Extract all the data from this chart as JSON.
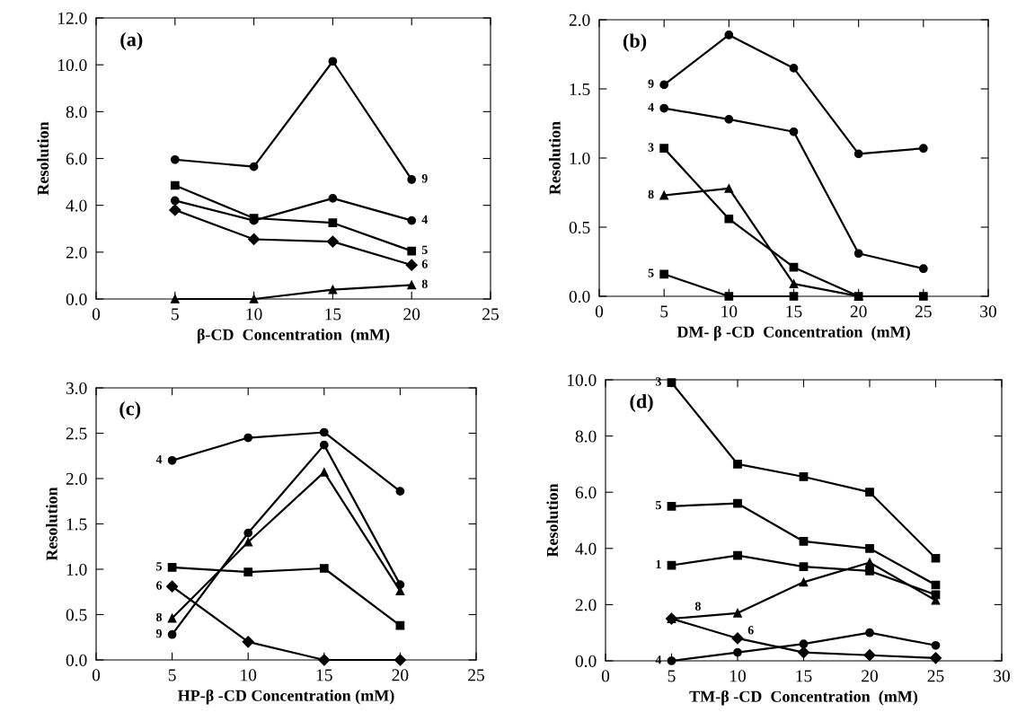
{
  "chart_data": [
    {
      "type": "line",
      "xlabel": "β-CD  Concentration  (mM)",
      "ylabel": "Resolution",
      "x": [
        5,
        10,
        15,
        20
      ],
      "xlim": [
        0,
        25
      ],
      "xticks": [
        0,
        5,
        10,
        15,
        20,
        25
      ],
      "ylim": [
        0,
        12
      ],
      "yticks": [
        {
          "value": 0,
          "label": "0.0"
        },
        {
          "value": 2,
          "label": "2.0"
        },
        {
          "value": 4,
          "label": "4.0"
        },
        {
          "value": 6,
          "label": "6.0"
        },
        {
          "value": 8,
          "label": "8.0"
        },
        {
          "value": 10,
          "label": "10.0"
        },
        {
          "value": 12,
          "label": "12.0"
        }
      ],
      "grid": false,
      "line_style": "solid",
      "annotations": [
        "(a)",
        {
          "text": "9",
          "x": 20,
          "y": 5.1
        },
        {
          "text": "4",
          "x": 20,
          "y": 3.35
        },
        {
          "text": "5",
          "x": 20,
          "y": 2.05
        },
        {
          "text": "6",
          "x": 20,
          "y": 1.45
        },
        {
          "text": "8",
          "x": 20,
          "y": 0.6
        }
      ],
      "series": [
        {
          "color": "#000000",
          "marker": "circle",
          "values": [
            5.95,
            5.65,
            10.15,
            5.1
          ]
        },
        {
          "color": "#000000",
          "marker": "circle",
          "values": [
            4.2,
            3.35,
            4.3,
            3.35
          ]
        },
        {
          "color": "#000000",
          "marker": "square",
          "values": [
            4.85,
            3.45,
            3.25,
            2.05
          ]
        },
        {
          "color": "#000000",
          "marker": "diamond",
          "values": [
            3.8,
            2.55,
            2.45,
            1.45
          ]
        },
        {
          "color": "#000000",
          "marker": "triangle",
          "values": [
            0,
            0,
            0.4,
            0.6
          ]
        }
      ]
    },
    {
      "type": "line",
      "xlabel": "DM- β -CD  Concentration  (mM)",
      "ylabel": "Resolution",
      "x": [
        5,
        10,
        15,
        20,
        25
      ],
      "xlim": [
        0,
        30
      ],
      "xticks": [
        0,
        5,
        10,
        15,
        20,
        25,
        30
      ],
      "ylim": [
        0,
        2
      ],
      "yticks": [
        {
          "value": 0,
          "label": "0.0"
        },
        {
          "value": 0.5,
          "label": "0.5"
        },
        {
          "value": 1,
          "label": "1.0"
        },
        {
          "value": 1.5,
          "label": "1.5"
        },
        {
          "value": 2,
          "label": "2.0"
        }
      ],
      "grid": false,
      "line_style": "solid",
      "annotations": [
        "(b)",
        {
          "text": "9",
          "x": 5,
          "y": 1.53
        },
        {
          "text": "4",
          "x": 5,
          "y": 1.36
        },
        {
          "text": "3",
          "x": 5,
          "y": 1.07
        },
        {
          "text": "8",
          "x": 5,
          "y": 0.73
        },
        {
          "text": "5",
          "x": 5,
          "y": 0.16
        }
      ],
      "series": [
        {
          "color": "#000000",
          "marker": "circle",
          "values": [
            1.53,
            1.89,
            1.65,
            1.03,
            1.07
          ]
        },
        {
          "color": "#000000",
          "marker": "circle",
          "values": [
            1.36,
            1.28,
            1.19,
            0.31,
            0.2
          ]
        },
        {
          "color": "#000000",
          "marker": "square",
          "values": [
            1.07,
            0.56,
            0.21,
            0,
            0
          ]
        },
        {
          "color": "#000000",
          "marker": "triangle",
          "values": [
            0.73,
            0.78,
            0.09,
            0,
            null
          ]
        },
        {
          "color": "#000000",
          "marker": "square",
          "values": [
            0.16,
            0,
            0,
            null,
            null
          ]
        }
      ]
    },
    {
      "type": "line",
      "xlabel": "HP-β -CD Concentration (mM)",
      "ylabel": "Resolution",
      "x": [
        5,
        10,
        15,
        20
      ],
      "xlim": [
        0,
        25
      ],
      "xticks": [
        0,
        5,
        10,
        15,
        20,
        25
      ],
      "ylim": [
        0,
        3
      ],
      "yticks": [
        {
          "value": 0,
          "label": "0.0"
        },
        {
          "value": 0.5,
          "label": "0.5"
        },
        {
          "value": 1,
          "label": "1.0"
        },
        {
          "value": 1.5,
          "label": "1.5"
        },
        {
          "value": 2,
          "label": "2.0"
        },
        {
          "value": 2.5,
          "label": "2.5"
        },
        {
          "value": 3,
          "label": "3.0"
        }
      ],
      "grid": false,
      "line_style": "solid",
      "annotations": [
        "(c)",
        {
          "text": "4",
          "x": 5,
          "y": 2.2
        },
        {
          "text": "5",
          "x": 5,
          "y": 1.02
        },
        {
          "text": "6",
          "x": 5,
          "y": 0.81
        },
        {
          "text": "8",
          "x": 5,
          "y": 0.46
        },
        {
          "text": "9",
          "x": 5,
          "y": 0.28
        }
      ],
      "series": [
        {
          "color": "#000000",
          "marker": "circle",
          "values": [
            2.2,
            2.45,
            2.51,
            1.86
          ]
        },
        {
          "color": "#000000",
          "marker": "square",
          "values": [
            1.02,
            0.97,
            1.01,
            0.38
          ]
        },
        {
          "color": "#000000",
          "marker": "diamond",
          "values": [
            0.81,
            0.2,
            0,
            0
          ]
        },
        {
          "color": "#000000",
          "marker": "triangle",
          "values": [
            0.46,
            1.3,
            2.07,
            0.76
          ]
        },
        {
          "color": "#000000",
          "marker": "circle",
          "values": [
            0.28,
            1.4,
            2.37,
            0.83
          ]
        }
      ]
    },
    {
      "type": "line",
      "xlabel": "TM-β -CD  Concentration  (mM)",
      "ylabel": "Resolution",
      "x": [
        5,
        10,
        15,
        20,
        25
      ],
      "xlim": [
        0,
        30
      ],
      "xticks": [
        0,
        5,
        10,
        15,
        20,
        25,
        30
      ],
      "ylim": [
        0,
        10
      ],
      "yticks": [
        {
          "value": 0,
          "label": "0.0"
        },
        {
          "value": 2,
          "label": "2.0"
        },
        {
          "value": 4,
          "label": "4.0"
        },
        {
          "value": 6,
          "label": "6.0"
        },
        {
          "value": 8,
          "label": "8.0"
        },
        {
          "value": 10,
          "label": "10.0"
        }
      ],
      "grid": false,
      "line_style": "solid",
      "annotations": [
        "(d)",
        {
          "text": "3",
          "x": 5,
          "y": 9.9
        },
        {
          "text": "5",
          "x": 5,
          "y": 5.5
        },
        {
          "text": "1",
          "x": 5,
          "y": 3.4
        },
        {
          "text": "8",
          "x": 7,
          "y": 1.55
        },
        {
          "text": "6",
          "x": 11,
          "y": 0.7
        },
        {
          "text": "4",
          "x": 5,
          "y": 0
        }
      ],
      "series": [
        {
          "color": "#000000",
          "marker": "square",
          "values": [
            9.9,
            7.0,
            6.55,
            6.0,
            3.65
          ]
        },
        {
          "color": "#000000",
          "marker": "square",
          "values": [
            5.5,
            5.6,
            4.25,
            4.0,
            2.7
          ]
        },
        {
          "color": "#000000",
          "marker": "square",
          "values": [
            3.4,
            3.75,
            3.35,
            3.2,
            2.35
          ]
        },
        {
          "color": "#000000",
          "marker": "triangle",
          "values": [
            1.5,
            1.7,
            2.8,
            3.5,
            2.15
          ]
        },
        {
          "color": "#000000",
          "marker": "diamond",
          "values": [
            1.5,
            0.8,
            0.3,
            0.2,
            0.1
          ]
        },
        {
          "color": "#000000",
          "marker": "circle",
          "values": [
            0,
            0.3,
            0.6,
            1.0,
            0.55
          ]
        }
      ]
    }
  ]
}
